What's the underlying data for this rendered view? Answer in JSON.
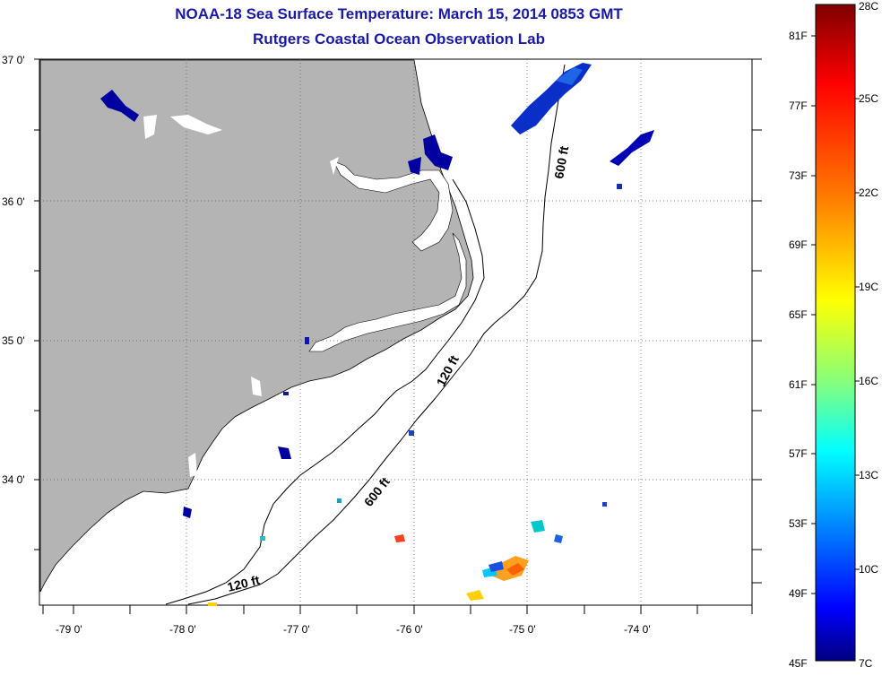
{
  "title": {
    "line1": "NOAA-18 Sea Surface Temperature:  March 15, 2014 0853 GMT",
    "line2": "Rutgers Coastal Ocean Observation Lab"
  },
  "map": {
    "lat_labels": [
      "37 0'",
      "36 0'",
      "35 0'",
      "34 0'"
    ],
    "lon_labels": [
      "-79 0'",
      "-78 0'",
      "-77 0'",
      "-76 0'",
      "-75 0'",
      "-74 0'"
    ],
    "land_color": "#b4b4b4",
    "ocean_color": "#ffffff",
    "isobath_labels": [
      "600 ft",
      "120 ft",
      "600 ft",
      "120 ft"
    ]
  },
  "colorbar": {
    "fahrenheit_labels": [
      "81F",
      "77F",
      "73F",
      "69F",
      "65F",
      "61F",
      "57F",
      "53F",
      "49F",
      "45F"
    ],
    "celsius_labels": [
      "28C",
      "25C",
      "22C",
      "19C",
      "16C",
      "13C",
      "10C",
      "7C"
    ],
    "colors": [
      "#7f0000",
      "#ff0000",
      "#ff8000",
      "#ffff00",
      "#80ff80",
      "#00ffff",
      "#0080ff",
      "#0000ff",
      "#00007f"
    ]
  }
}
